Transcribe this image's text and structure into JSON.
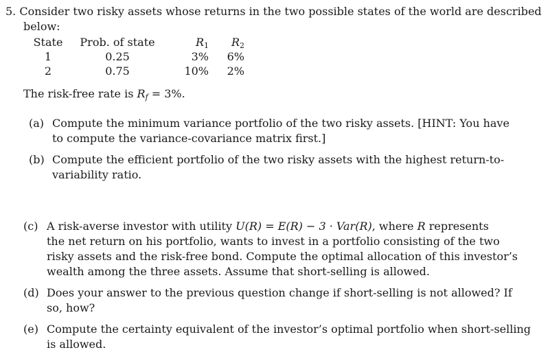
{
  "problem": {
    "number": "5.",
    "intro_line1": "Consider two risky assets whose returns in the two possible states of the world are described",
    "intro_line2": "below:"
  },
  "table": {
    "headers": {
      "state": "State",
      "prob": "Prob. of state",
      "r1_symbol": "R",
      "r1_sub": "1",
      "r2_symbol": "R",
      "r2_sub": "2"
    },
    "rows": [
      {
        "state": "1",
        "prob": "0.25",
        "r1": "3%",
        "r2": "6%"
      },
      {
        "state": "2",
        "prob": "0.75",
        "r1": "10%",
        "r2": "2%"
      }
    ]
  },
  "riskfree": {
    "prefix": "The risk-free rate is ",
    "symbol": "R",
    "sub": "f",
    "suffix": " = 3%."
  },
  "parts": {
    "a": {
      "label": "(a)",
      "line1": "Compute the minimum variance portfolio of the two risky assets. [HINT: You have",
      "line2": "to compute the variance-covariance matrix first.]"
    },
    "b": {
      "label": "(b)",
      "line1": "Compute the efficient portfolio of the two risky assets with the highest return-to-",
      "line2": "variability ratio."
    },
    "c": {
      "label": "(c)",
      "line1_a": "A risk-averse investor with utility ",
      "line1_formula": "U(R) = E(R) − 3 · Var(R)",
      "line1_b": ", where ",
      "line1_r": "R",
      "line1_c": " represents",
      "line2": "the net return on his portfolio, wants to invest in a portfolio consisting of the two",
      "line3": "risky assets and the risk-free bond. Compute the optimal allocation of this investor’s",
      "line4": "wealth among the three assets. Assume that short-selling is allowed."
    },
    "d": {
      "label": "(d)",
      "line1": "Does your answer to the previous question change if short-selling is not allowed? If",
      "line2": "so, how?"
    },
    "e": {
      "label": "(e)",
      "line1": "Compute the certainty equivalent of the investor’s optimal portfolio when short-selling",
      "line2": "is allowed."
    }
  }
}
